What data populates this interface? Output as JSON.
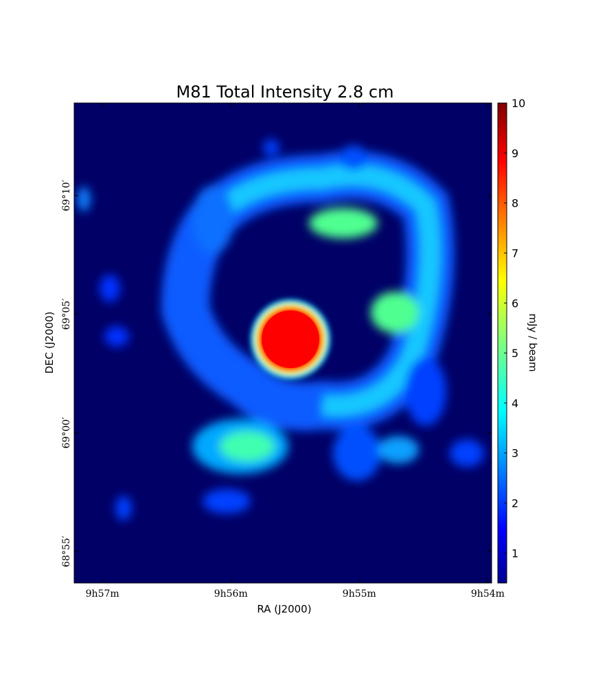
{
  "chart_data": {
    "type": "image",
    "title": "M81 Total Intensity 2.8 cm",
    "xlabel": "RA (J2000)",
    "ylabel": "DEC (J2000)",
    "xlim": [
      57.22,
      53.97
    ],
    "xticks": [
      {
        "value": 57,
        "label": "9h57m"
      },
      {
        "value": 56,
        "label": "9h56m"
      },
      {
        "value": 55,
        "label": "9h55m"
      },
      {
        "value": 54,
        "label": "9h54m"
      }
    ],
    "ylim": [
      -6.33,
      13.9
    ],
    "yticks": [
      {
        "value": 10,
        "label": "69°10′"
      },
      {
        "value": 5,
        "label": "69°05′"
      },
      {
        "value": 0,
        "label": "69°00′"
      },
      {
        "value": -5,
        "label": "68°55′"
      }
    ],
    "colorbar": {
      "label": "mJy / beam",
      "colormap": "jet",
      "lim": [
        0.4,
        10
      ],
      "ticks": [
        1,
        2,
        3,
        4,
        5,
        6,
        7,
        8,
        9,
        10
      ]
    }
  }
}
